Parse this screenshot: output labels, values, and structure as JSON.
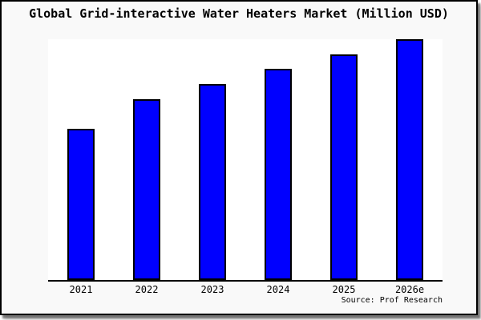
{
  "chart_data": {
    "type": "bar",
    "title": "Global Grid-interactive Water Heaters Market (Million USD)",
    "categories": [
      "2021",
      "2022",
      "2023",
      "2024",
      "2025",
      "2026e"
    ],
    "values": [
      62.8,
      75.1,
      81.4,
      87.7,
      93.7,
      100
    ],
    "values_unit": "relative index (2026e = 100; no numeric y-axis shown)",
    "xlabel": "",
    "ylabel": "",
    "ylim": [
      0,
      100
    ],
    "grid": false,
    "legend": false,
    "bar_color": "#0000ff",
    "bar_border_color": "#000000",
    "plot_background": "#ffffff",
    "frame_background": "#f9f9f9",
    "source": "Source: Prof Research"
  }
}
